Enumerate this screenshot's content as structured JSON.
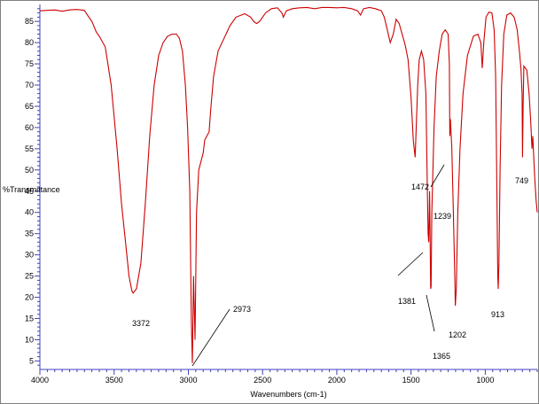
{
  "chart_data": {
    "type": "line",
    "xlabel": "Wavenumbers (cm-1)",
    "ylabel": "%Transmittance",
    "xlim": [
      4000,
      650
    ],
    "ylim": [
      3,
      89
    ],
    "x_ticks": [
      4000,
      3500,
      3000,
      2500,
      2000,
      1500,
      1000
    ],
    "y_ticks": [
      5,
      10,
      15,
      20,
      25,
      30,
      35,
      40,
      45,
      50,
      55,
      60,
      65,
      70,
      75,
      80,
      85
    ],
    "grid": false,
    "line_color": "#cc0000",
    "series": [
      {
        "values": [
          [
            4000,
            87.5
          ],
          [
            3950,
            87.6
          ],
          [
            3900,
            87.7
          ],
          [
            3850,
            87.4
          ],
          [
            3800,
            87.7
          ],
          [
            3750,
            87.8
          ],
          [
            3700,
            87.6
          ],
          [
            3680,
            86.5
          ],
          [
            3650,
            85.0
          ],
          [
            3620,
            82.5
          ],
          [
            3600,
            81.5
          ],
          [
            3560,
            79.0
          ],
          [
            3520,
            70.0
          ],
          [
            3480,
            55.0
          ],
          [
            3450,
            42.0
          ],
          [
            3420,
            32.0
          ],
          [
            3400,
            25.0
          ],
          [
            3380,
            21.5
          ],
          [
            3372,
            21.0
          ],
          [
            3350,
            22.0
          ],
          [
            3320,
            28.0
          ],
          [
            3290,
            42.0
          ],
          [
            3260,
            58.0
          ],
          [
            3230,
            70.0
          ],
          [
            3200,
            77.0
          ],
          [
            3170,
            80.0
          ],
          [
            3140,
            81.5
          ],
          [
            3110,
            82.0
          ],
          [
            3080,
            82.0
          ],
          [
            3060,
            81.0
          ],
          [
            3040,
            78.0
          ],
          [
            3020,
            70.0
          ],
          [
            3005,
            60.0
          ],
          [
            2990,
            45.0
          ],
          [
            2980,
            15.0
          ],
          [
            2973,
            4.5
          ],
          [
            2965,
            25.0
          ],
          [
            2955,
            10.0
          ],
          [
            2945,
            40.0
          ],
          [
            2930,
            50.0
          ],
          [
            2915,
            52.0
          ],
          [
            2900,
            54.0
          ],
          [
            2890,
            57.0
          ],
          [
            2875,
            58.0
          ],
          [
            2860,
            59.0
          ],
          [
            2850,
            64.0
          ],
          [
            2830,
            72.0
          ],
          [
            2800,
            78.0
          ],
          [
            2760,
            81.0
          ],
          [
            2720,
            84.0
          ],
          [
            2680,
            86.0
          ],
          [
            2620,
            86.8
          ],
          [
            2580,
            86.0
          ],
          [
            2560,
            85.0
          ],
          [
            2540,
            84.5
          ],
          [
            2520,
            85.0
          ],
          [
            2500,
            86.0
          ],
          [
            2480,
            87.0
          ],
          [
            2440,
            88.0
          ],
          [
            2400,
            88.2
          ],
          [
            2370,
            87.0
          ],
          [
            2360,
            86.0
          ],
          [
            2340,
            87.5
          ],
          [
            2300,
            88.0
          ],
          [
            2250,
            88.2
          ],
          [
            2200,
            88.3
          ],
          [
            2150,
            88.0
          ],
          [
            2100,
            88.3
          ],
          [
            2050,
            88.3
          ],
          [
            2000,
            88.2
          ],
          [
            1950,
            88.3
          ],
          [
            1900,
            88.0
          ],
          [
            1860,
            87.5
          ],
          [
            1840,
            86.5
          ],
          [
            1820,
            88.0
          ],
          [
            1780,
            88.3
          ],
          [
            1740,
            88.0
          ],
          [
            1700,
            87.5
          ],
          [
            1680,
            86.0
          ],
          [
            1660,
            83.0
          ],
          [
            1640,
            80.0
          ],
          [
            1620,
            82.0
          ],
          [
            1600,
            85.5
          ],
          [
            1580,
            84.5
          ],
          [
            1560,
            82.0
          ],
          [
            1540,
            79.5
          ],
          [
            1520,
            76.0
          ],
          [
            1500,
            67.0
          ],
          [
            1485,
            57.0
          ],
          [
            1472,
            53.0
          ],
          [
            1465,
            60.0
          ],
          [
            1455,
            70.0
          ],
          [
            1445,
            76.0
          ],
          [
            1430,
            78.0
          ],
          [
            1415,
            76.0
          ],
          [
            1400,
            68.0
          ],
          [
            1390,
            45.0
          ],
          [
            1385,
            35.0
          ],
          [
            1381,
            33.0
          ],
          [
            1375,
            45.0
          ],
          [
            1368,
            22.0
          ],
          [
            1365,
            22.5
          ],
          [
            1360,
            40.0
          ],
          [
            1345,
            60.0
          ],
          [
            1330,
            72.0
          ],
          [
            1310,
            78.0
          ],
          [
            1290,
            82.0
          ],
          [
            1270,
            83.0
          ],
          [
            1250,
            82.0
          ],
          [
            1242,
            75.0
          ],
          [
            1239,
            58.0
          ],
          [
            1235,
            62.0
          ],
          [
            1225,
            55.0
          ],
          [
            1215,
            40.0
          ],
          [
            1205,
            24.0
          ],
          [
            1202,
            18.0
          ],
          [
            1195,
            22.0
          ],
          [
            1185,
            40.0
          ],
          [
            1170,
            55.0
          ],
          [
            1150,
            68.0
          ],
          [
            1120,
            77.0
          ],
          [
            1080,
            81.5
          ],
          [
            1050,
            82.0
          ],
          [
            1030,
            80.0
          ],
          [
            1020,
            74.0
          ],
          [
            1010,
            80.0
          ],
          [
            995,
            86.0
          ],
          [
            975,
            87.2
          ],
          [
            955,
            87.0
          ],
          [
            940,
            83.0
          ],
          [
            930,
            72.0
          ],
          [
            922,
            45.0
          ],
          [
            916,
            25.0
          ],
          [
            913,
            22.0
          ],
          [
            908,
            28.0
          ],
          [
            900,
            50.0
          ],
          [
            890,
            70.0
          ],
          [
            875,
            82.0
          ],
          [
            855,
            86.5
          ],
          [
            830,
            87.0
          ],
          [
            805,
            86.0
          ],
          [
            785,
            83.0
          ],
          [
            770,
            78.0
          ],
          [
            760,
            74.0
          ],
          [
            752,
            68.0
          ],
          [
            749,
            53.0
          ],
          [
            745,
            65.0
          ],
          [
            740,
            74.5
          ],
          [
            720,
            73.5
          ],
          [
            705,
            68.0
          ],
          [
            695,
            62.0
          ],
          [
            685,
            55.0
          ],
          [
            680,
            58.0
          ],
          [
            672,
            52.0
          ],
          [
            665,
            47.0
          ],
          [
            658,
            43.0
          ],
          [
            650,
            40.0
          ]
        ]
      }
    ],
    "annotations": [
      {
        "text": "3372",
        "x": 3372,
        "y": 21.0
      },
      {
        "text": "2973",
        "x": 2973,
        "y": 4.5
      },
      {
        "text": "1472",
        "x": 1472,
        "y": 53.0
      },
      {
        "text": "1239",
        "x": 1239,
        "y": 58.0
      },
      {
        "text": "1381",
        "x": 1381,
        "y": 33.0
      },
      {
        "text": "1365",
        "x": 1365,
        "y": 22.5
      },
      {
        "text": "1202",
        "x": 1202,
        "y": 18.0
      },
      {
        "text": "913",
        "x": 913,
        "y": 22.0
      },
      {
        "text": "749",
        "x": 749,
        "y": 53.0
      }
    ]
  }
}
